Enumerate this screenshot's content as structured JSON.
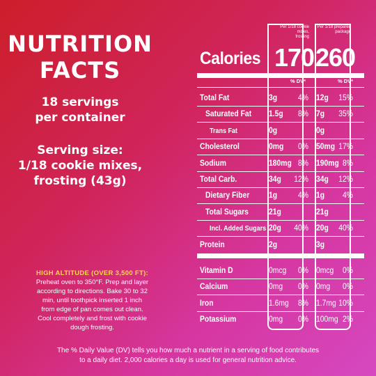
{
  "left": {
    "title_line1": "NUTRITION",
    "title_line2": "FACTS",
    "servings_line1": "18 servings",
    "servings_line2": "per container",
    "serving_size_line1": "Serving size:",
    "serving_size_line2": "1/18 cookie mixes,",
    "serving_size_line3": "frosting (43g)",
    "altitude_heading": "HIGH ALTITUDE (OVER 3,500 FT):",
    "altitude_line1": "Preheat oven to 350°F. Prep and layer",
    "altitude_line2": "according to directions. Bake 30 to 32",
    "altitude_line3": "min, until toothpick inserted 1 inch",
    "altitude_line4": "from edge of pan comes out clean.",
    "altitude_line5": "Cool completely and frost with cookie",
    "altitude_line6": "dough frosting."
  },
  "panel": {
    "col1_head_line1": "Per 1/18 cookie mixes,",
    "col1_head_line2": "frosting",
    "col2_head_line1": "Per 1/18 prepared",
    "col2_head_line2": "package",
    "calories_label": "Calories",
    "calories_col1": "170",
    "calories_col2": "260",
    "dv_label_col1": "% DV*",
    "dv_label_col2": "% DV*",
    "rows_a": [
      {
        "label": "Total Fat",
        "a1": "3g",
        "p1": "4%",
        "a2": "12g",
        "p2": "15%"
      },
      {
        "label": "Saturated Fat",
        "a1": "1.5g",
        "p1": "8%",
        "a2": "7g",
        "p2": "35%"
      },
      {
        "label": "Trans Fat",
        "a1": "0g",
        "p1": "",
        "a2": "0g",
        "p2": ""
      },
      {
        "label": "Cholesterol",
        "a1": "0mg",
        "p1": "0%",
        "a2": "50mg",
        "p2": "17%"
      },
      {
        "label": "Sodium",
        "a1": "180mg",
        "p1": "8%",
        "a2": "190mg",
        "p2": "8%"
      },
      {
        "label": "Total Carb.",
        "a1": "34g",
        "p1": "12%",
        "a2": "34g",
        "p2": "12%"
      },
      {
        "label": "Dietary Fiber",
        "a1": "1g",
        "p1": "4%",
        "a2": "1g",
        "p2": "4%"
      },
      {
        "label": "Total Sugars",
        "a1": "21g",
        "p1": "",
        "a2": "21g",
        "p2": ""
      },
      {
        "label": "Incl. Added Sugars",
        "a1": "20g",
        "p1": "40%",
        "a2": "20g",
        "p2": "40%"
      },
      {
        "label": "Protein",
        "a1": "2g",
        "p1": "",
        "a2": "3g",
        "p2": ""
      }
    ],
    "rows_b": [
      {
        "label": "Vitamin D",
        "a1": "0mcg",
        "p1": "0%",
        "a2": "0mcg",
        "p2": "0%"
      },
      {
        "label": "Calcium",
        "a1": "0mg",
        "p1": "0%",
        "a2": "0mg",
        "p2": "0%"
      },
      {
        "label": "Iron",
        "a1": "1.6mg",
        "p1": "8%",
        "a2": "1.7mg",
        "p2": "10%"
      },
      {
        "label": "Potassium",
        "a1": "0mg",
        "p1": "0%",
        "a2": "100mg",
        "p2": "2%"
      }
    ]
  },
  "footnote_line1": "The % Daily Value (DV) tells you how much a nutrient in a serving of food contributes",
  "footnote_line2": "to a daily diet. 2,000 calories a day is used for general nutrition advice.",
  "colors": {
    "background_start": "#cc1f2a",
    "background_end": "#d648c0",
    "altitude_heading": "#ffd84a",
    "text": "#ffffff"
  }
}
